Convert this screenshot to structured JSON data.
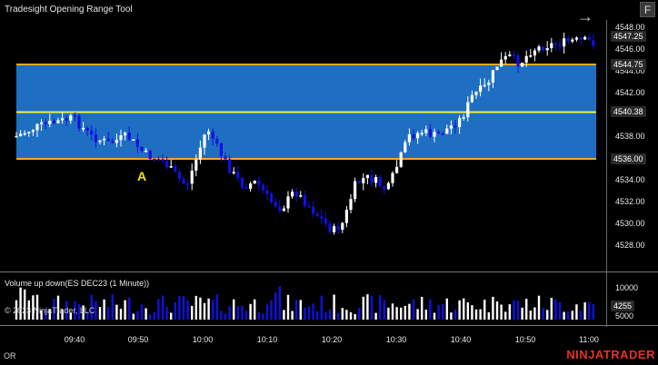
{
  "window": {
    "title": "Tradesight Opening Range Tool",
    "f_button": "F",
    "nav_arrow": "→"
  },
  "price_panel": {
    "y_ticks": [
      "4548.00",
      "4546.00",
      "4544.00",
      "4542.00",
      "4540.00",
      "4538.00",
      "4536.00",
      "4534.00",
      "4532.00",
      "4530.00",
      "4528.00"
    ],
    "price_labels": {
      "last": "4547.25",
      "range_high": "4544.75",
      "range_mid": "4540.38",
      "range_low": "4536.00"
    },
    "marker_label": "A",
    "colors": {
      "range_fill": "#1e6fc2",
      "range_edge": "#f5a623",
      "range_mid": "#f2f23a",
      "candle_up": "#ffffff",
      "candle_down": "#1010e0"
    }
  },
  "volume_panel": {
    "title": "Volume up down(ES DEC23 (1 Minute))",
    "y_ticks": [
      "10000",
      "5000"
    ],
    "current_label": "4255",
    "copyright": "© 2023 NinjaTrader, LLC"
  },
  "x_axis": {
    "ticks": [
      "09:40",
      "09:50",
      "10:00",
      "10:10",
      "10:20",
      "10:30",
      "10:40",
      "10:50",
      "11:00"
    ]
  },
  "footer": {
    "left_label": "OR",
    "logo": "NINJATRADER"
  }
}
